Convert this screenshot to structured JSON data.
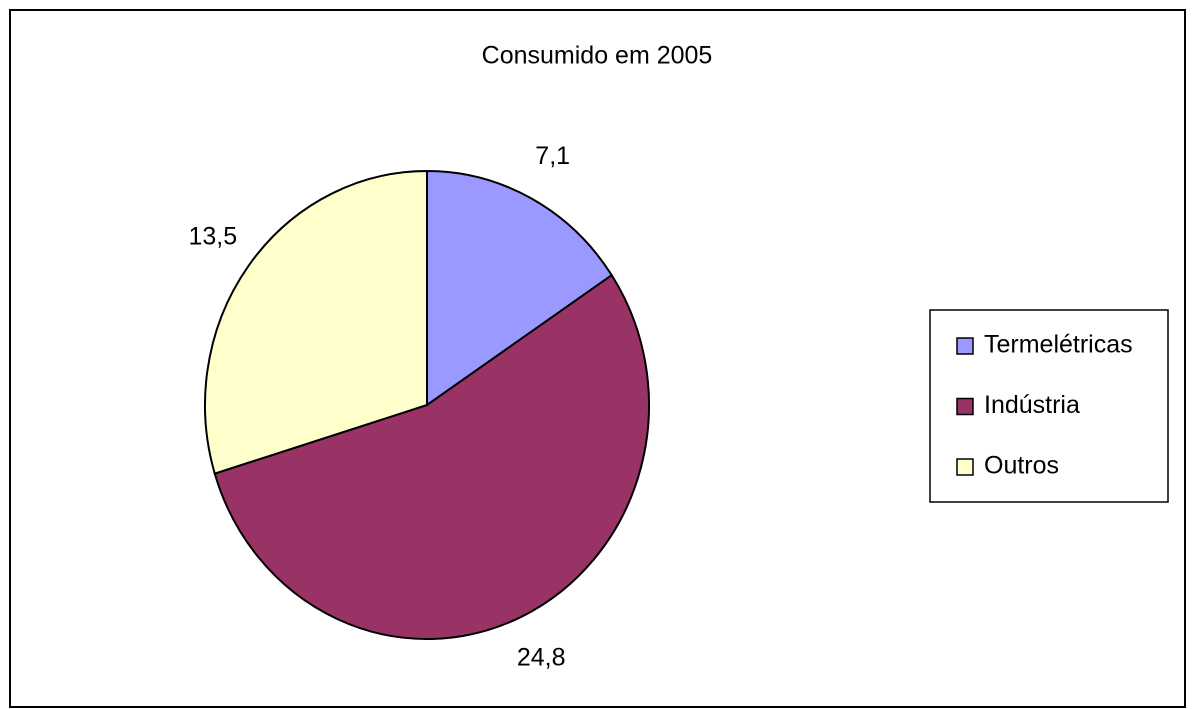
{
  "chart_data": {
    "type": "pie",
    "title": "Consumido em 2005",
    "categories": [
      "Termelétricas",
      "Indústria",
      "Outros"
    ],
    "values": [
      7.1,
      24.8,
      13.5
    ],
    "value_labels": [
      "7,1",
      "24,8",
      "13,5"
    ],
    "colors": [
      "#9999ff",
      "#993366",
      "#ffffcc"
    ],
    "legend": "right"
  }
}
